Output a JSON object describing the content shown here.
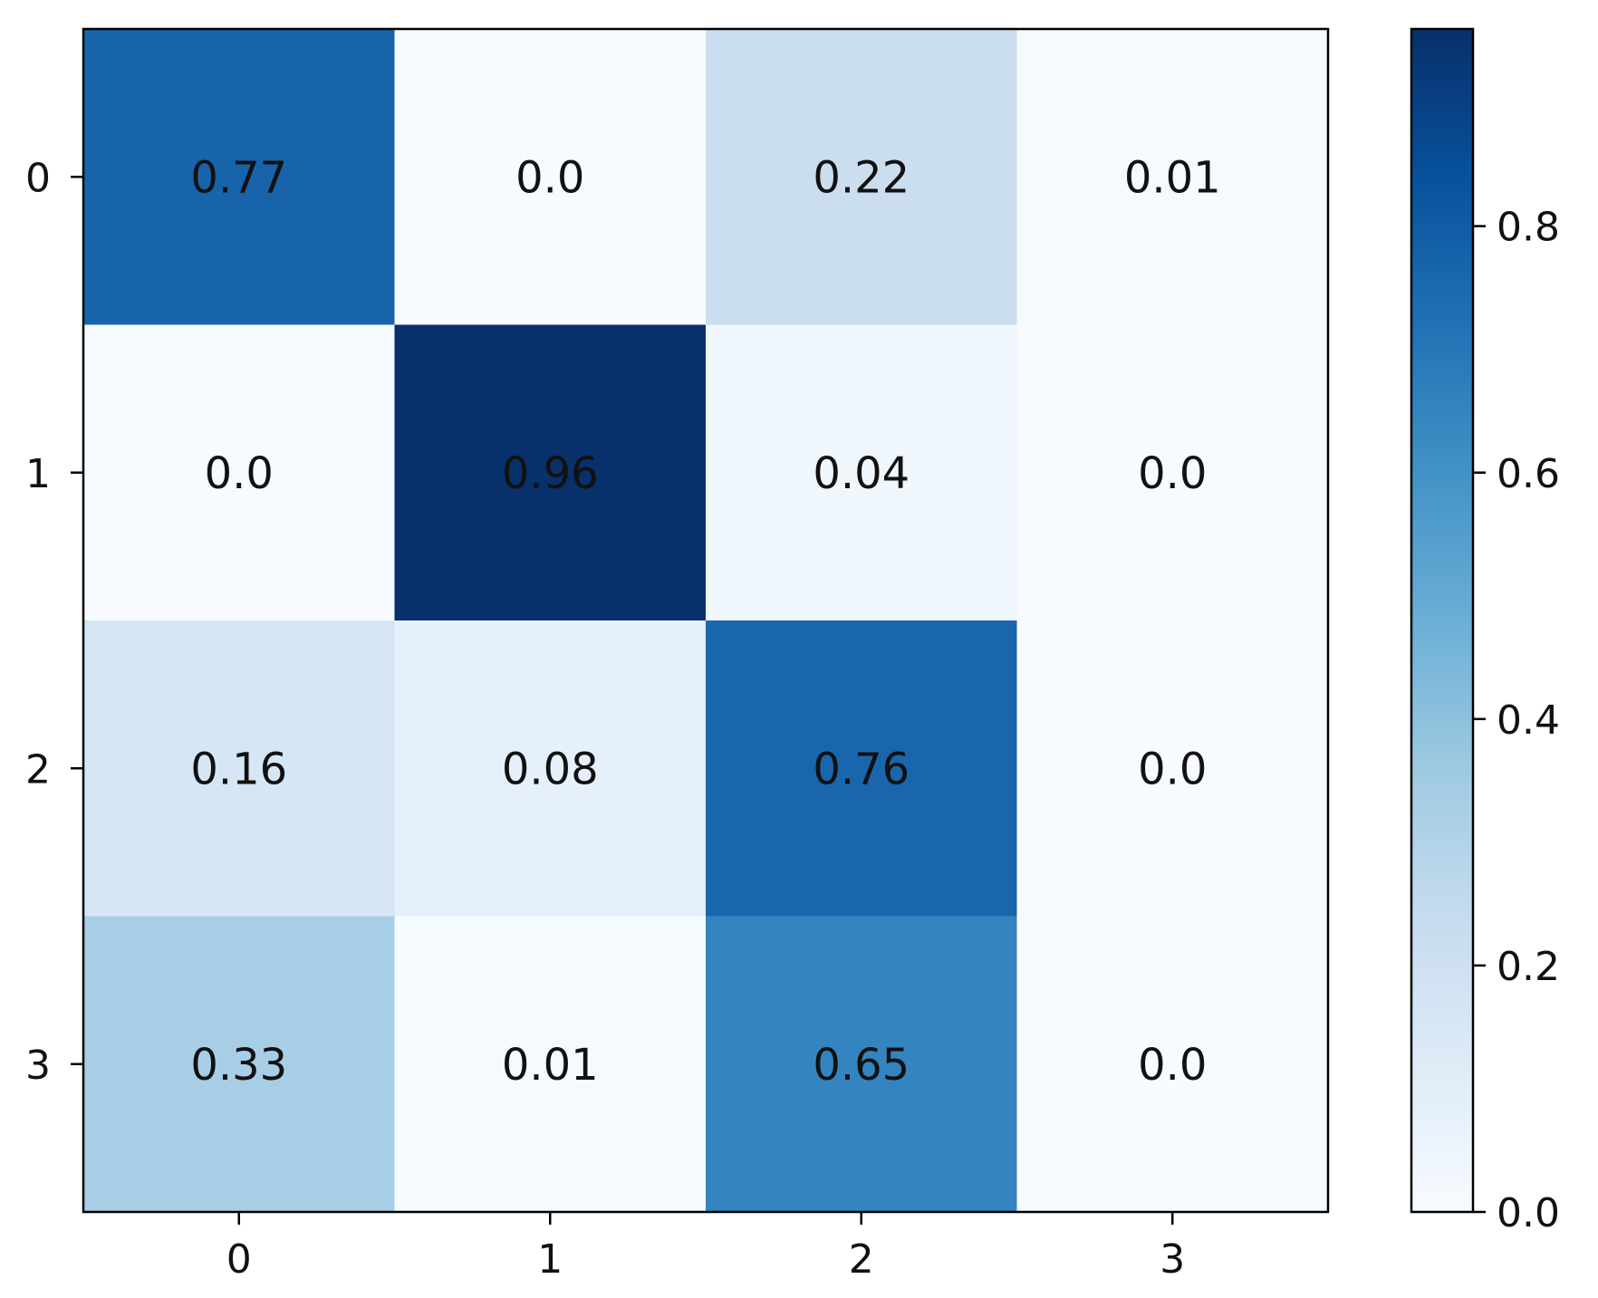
{
  "chart_data": {
    "type": "heatmap",
    "title": "",
    "xlabel": "",
    "ylabel": "",
    "x_categories": [
      "0",
      "1",
      "2",
      "3"
    ],
    "y_categories": [
      "0",
      "1",
      "2",
      "3"
    ],
    "values": [
      [
        0.77,
        0.0,
        0.22,
        0.01
      ],
      [
        0.0,
        0.96,
        0.04,
        0.0
      ],
      [
        0.16,
        0.08,
        0.76,
        0.0
      ],
      [
        0.33,
        0.01,
        0.65,
        0.0
      ]
    ],
    "cell_labels": [
      [
        "0.77",
        "0.0",
        "0.22",
        "0.01"
      ],
      [
        "0.0",
        "0.96",
        "0.04",
        "0.0"
      ],
      [
        "0.16",
        "0.08",
        "0.76",
        "0.0"
      ],
      [
        "0.33",
        "0.01",
        "0.65",
        "0.0"
      ]
    ],
    "colormap": "Blues",
    "colormap_stops": [
      "#f7fbff",
      "#deebf7",
      "#c6dbef",
      "#9ecae1",
      "#6baed6",
      "#4292c6",
      "#2171b5",
      "#08519c",
      "#08306b"
    ],
    "colorbar": {
      "range": [
        0.0,
        0.96
      ],
      "ticks": [
        0.0,
        0.2,
        0.4,
        0.6,
        0.8
      ],
      "tick_labels": [
        "0.0",
        "0.2",
        "0.4",
        "0.6",
        "0.8"
      ]
    }
  }
}
